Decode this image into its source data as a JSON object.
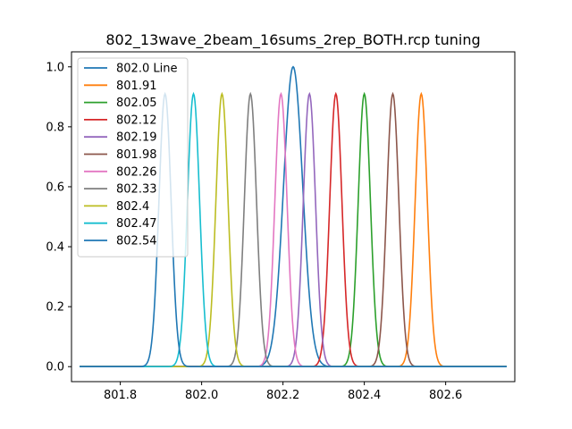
{
  "chart_data": {
    "type": "line",
    "title": "802_13wave_2beam_16sums_2rep_BOTH.rcp tuning",
    "xlabel": "",
    "ylabel": "",
    "xlim": [
      801.68,
      802.77
    ],
    "ylim": [
      -0.05,
      1.05
    ],
    "x_range": [
      801.7,
      802.75
    ],
    "xticks": [
      801.8,
      802.0,
      802.2,
      802.4,
      802.6
    ],
    "xtick_labels": [
      "801.8",
      "802.0",
      "802.2",
      "802.4",
      "802.6"
    ],
    "yticks": [
      0.0,
      0.2,
      0.4,
      0.6,
      0.8,
      1.0
    ],
    "ytick_labels": [
      "0.0",
      "0.2",
      "0.4",
      "0.6",
      "0.8",
      "1.0"
    ],
    "grid": false,
    "legend_position": "upper-left",
    "series": [
      {
        "name": "802.0 Line",
        "peak_x": 802.225,
        "peak_y": 1.0,
        "sigma": 0.0235,
        "color": "#1f77b4"
      },
      {
        "name": "801.91",
        "peak_x": 802.54,
        "peak_y": 0.91,
        "sigma": 0.015,
        "color": "#ff7f0e"
      },
      {
        "name": "802.05",
        "peak_x": 802.4,
        "peak_y": 0.91,
        "sigma": 0.015,
        "color": "#2ca02c"
      },
      {
        "name": "802.12",
        "peak_x": 802.33,
        "peak_y": 0.91,
        "sigma": 0.015,
        "color": "#d62728"
      },
      {
        "name": "802.19",
        "peak_x": 802.265,
        "peak_y": 0.91,
        "sigma": 0.015,
        "color": "#9467bd"
      },
      {
        "name": "801.98",
        "peak_x": 802.47,
        "peak_y": 0.91,
        "sigma": 0.015,
        "color": "#8c564b"
      },
      {
        "name": "802.26",
        "peak_x": 802.195,
        "peak_y": 0.91,
        "sigma": 0.015,
        "color": "#e377c2"
      },
      {
        "name": "802.33",
        "peak_x": 802.12,
        "peak_y": 0.91,
        "sigma": 0.015,
        "color": "#7f7f7f"
      },
      {
        "name": "802.4",
        "peak_x": 802.05,
        "peak_y": 0.91,
        "sigma": 0.015,
        "color": "#bcbd22"
      },
      {
        "name": "802.47",
        "peak_x": 801.98,
        "peak_y": 0.91,
        "sigma": 0.015,
        "color": "#17becf"
      },
      {
        "name": "802.54",
        "peak_x": 801.91,
        "peak_y": 0.91,
        "sigma": 0.015,
        "color": "#1f77b4"
      }
    ]
  }
}
